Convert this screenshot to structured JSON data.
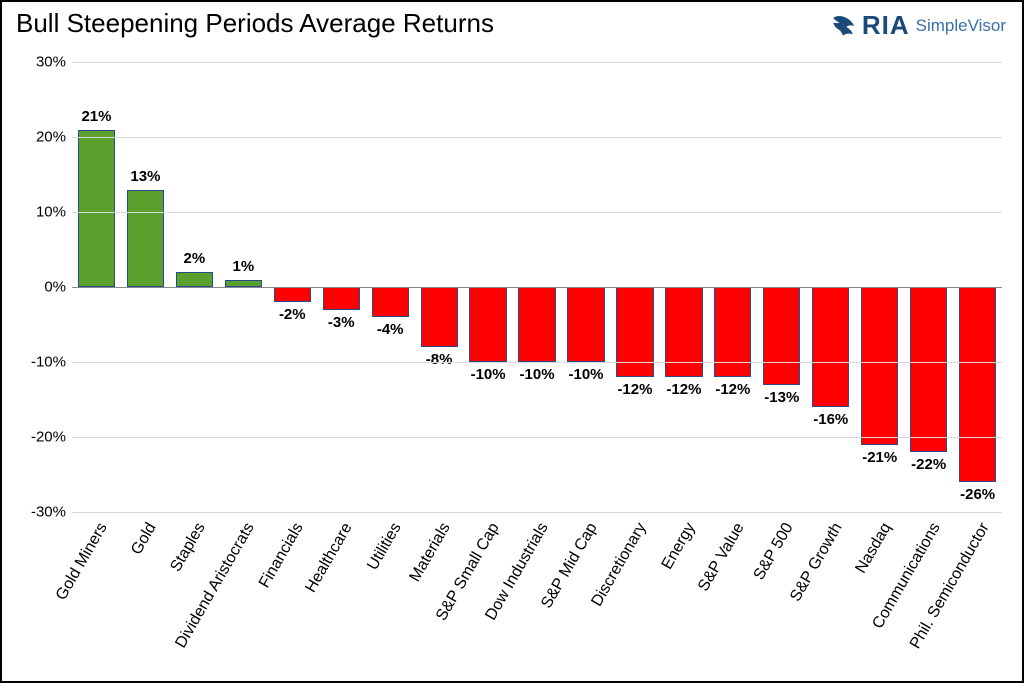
{
  "chart": {
    "type": "bar",
    "title": "Bull Steepening Periods Average Returns",
    "brand": {
      "primary": "RIA",
      "secondary": "SimpleVisor"
    },
    "background_color": "#ffffff",
    "border_color": "#000000",
    "grid_color": "#d9d9d9",
    "zero_line_color": "#888888",
    "bar_border_color": "#2a4a8a",
    "positive_color": "#5aa02c",
    "negative_color": "#ff0000",
    "title_fontsize": 26,
    "label_fontsize": 15,
    "xlabel_fontsize": 16,
    "xlabel_rotation_deg": -60,
    "bar_width_ratio": 0.76,
    "ylim": [
      -30,
      30
    ],
    "ytick_step": 10,
    "yticks": [
      "30%",
      "20%",
      "10%",
      "0%",
      "-10%",
      "-20%",
      "-30%"
    ],
    "ytick_values": [
      30,
      20,
      10,
      0,
      -10,
      -20,
      -30
    ],
    "categories": [
      "Gold Miners",
      "Gold",
      "Staples",
      "Dividend Aristocrats",
      "Financials",
      "Healthcare",
      "Utilities",
      "Materials",
      "S&P Small Cap",
      "Dow Industrials",
      "S&P Mid Cap",
      "Discretionary",
      "Energy",
      "S&P Value",
      "S&P 500",
      "S&P Growth",
      "Nasdaq",
      "Communications",
      "Phil. Semiconductor"
    ],
    "values": [
      21,
      13,
      2,
      1,
      -2,
      -3,
      -4,
      -8,
      -10,
      -10,
      -10,
      -12,
      -12,
      -12,
      -13,
      -16,
      -21,
      -22,
      -26
    ],
    "value_labels": [
      "21%",
      "13%",
      "2%",
      "1%",
      "-2%",
      "-3%",
      "-4%",
      "-8%",
      "-10%",
      "-10%",
      "-10%",
      "-12%",
      "-12%",
      "-12%",
      "-13%",
      "-16%",
      "-21%",
      "-22%",
      "-26%"
    ]
  }
}
